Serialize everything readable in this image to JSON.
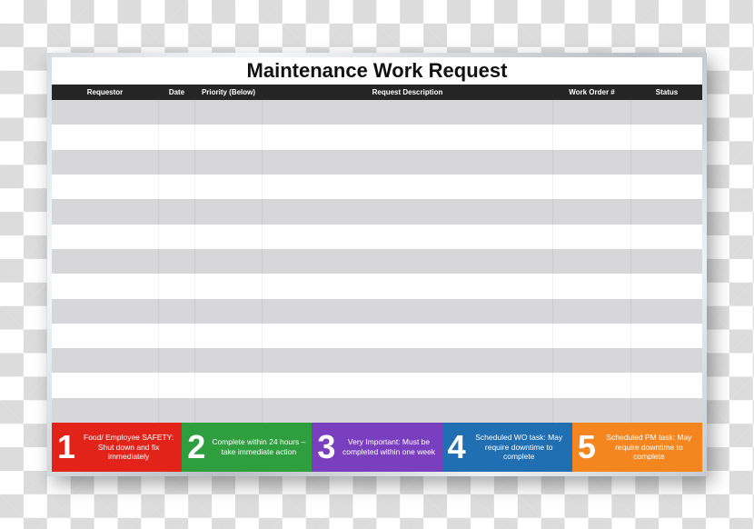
{
  "title": "Maintenance Work Request",
  "columns": [
    {
      "key": "requestor",
      "label": "Requestor",
      "class": "c-requestor"
    },
    {
      "key": "date",
      "label": "Date",
      "class": "c-date"
    },
    {
      "key": "priority",
      "label": "Priority (Below)",
      "class": "c-priority"
    },
    {
      "key": "desc",
      "label": "Request Description",
      "class": "c-desc"
    },
    {
      "key": "order",
      "label": "Work Order #",
      "class": "c-order"
    },
    {
      "key": "status",
      "label": "Status",
      "class": "c-status"
    }
  ],
  "row_count": 13,
  "row_colors": {
    "odd": "#d7d7d9",
    "even": "#ffffff"
  },
  "header_bg": "#252525",
  "header_text_color": "#ffffff",
  "title_fontsize": 22,
  "header_fontsize": 8,
  "legend_number_fontsize": 36,
  "legend_text_fontsize": 8.5,
  "frame_colors": [
    "#d9dde0",
    "#f5f7f8",
    "#b9bfc4",
    "#eef1f3",
    "#c7ccd0"
  ],
  "legend": [
    {
      "n": "1",
      "bg": "#e2231a",
      "text": "Food/ Employee SAFETY: Shut down and fix immediately"
    },
    {
      "n": "2",
      "bg": "#2e9e3f",
      "text": "Complete within 24 hours – take immediate action"
    },
    {
      "n": "3",
      "bg": "#7a3fbf",
      "text": "Very Important: Must be completed within one week"
    },
    {
      "n": "4",
      "bg": "#1f6fb2",
      "text": "Scheduled WO task: May require downtime to complete"
    },
    {
      "n": "5",
      "bg": "#f5861f",
      "text": "Scheduled PM task: May require downtime to complete"
    }
  ]
}
